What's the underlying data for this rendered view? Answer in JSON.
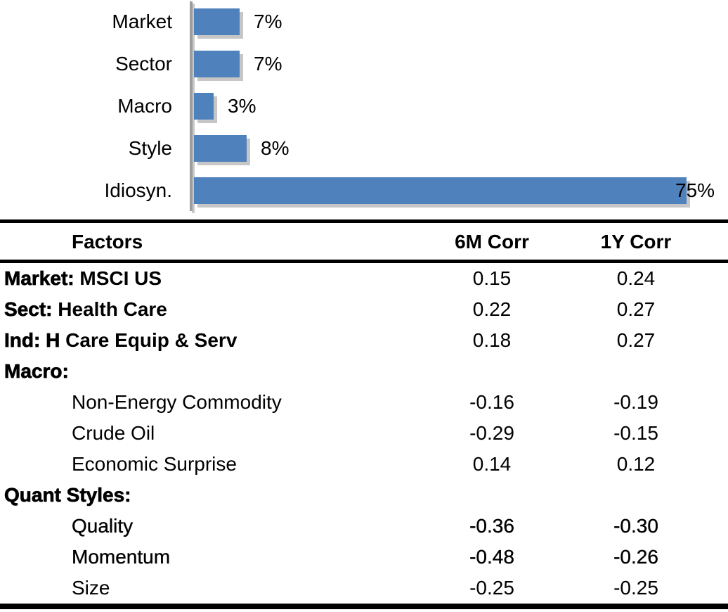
{
  "colors": {
    "bar": "#4f81bd",
    "bar_shadow": "#c6c6c6",
    "axis_line": "#9d9d9d",
    "rule": "#000000",
    "text": "#000000"
  },
  "chart_data": [
    {
      "type": "bar",
      "orientation": "horizontal",
      "title": "",
      "xlabel": "",
      "ylabel": "",
      "categories": [
        "Market",
        "Sector",
        "Macro",
        "Style",
        "Idiosyn."
      ],
      "values": [
        7,
        7,
        3,
        8,
        75
      ],
      "data_labels": [
        "7%",
        "7%",
        "3%",
        "8%",
        "75%"
      ],
      "unit": "%",
      "xlim": [
        0,
        80
      ],
      "value_axis_visible": false,
      "grid": false,
      "legend": "none",
      "bar_color": "#4f81bd"
    },
    {
      "type": "table",
      "columns": [
        "Factors",
        "6M Corr",
        "1Y Corr"
      ],
      "rows": [
        {
          "strong": "Market:",
          "label": "MSCI US",
          "indent": false,
          "semi": false,
          "c6": "0.15",
          "c1": "0.24"
        },
        {
          "strong": "Sect:",
          "label": "Health Care",
          "indent": false,
          "semi": false,
          "c6": "0.22",
          "c1": "0.27"
        },
        {
          "strong": "Ind: H",
          "label": "Care Equip & Serv",
          "indent": false,
          "semi": false,
          "c6": "0.18",
          "c1": "0.27"
        },
        {
          "strong": "Macro:",
          "label": "",
          "indent": false,
          "semi": false,
          "c6": "",
          "c1": ""
        },
        {
          "strong": "",
          "label": "Non-Energy Commodity",
          "indent": true,
          "semi": false,
          "c6": "-0.16",
          "c1": "-0.19"
        },
        {
          "strong": "",
          "label": "Crude Oil",
          "indent": true,
          "semi": false,
          "c6": "-0.29",
          "c1": "-0.15"
        },
        {
          "strong": "",
          "label": "Economic Surprise",
          "indent": true,
          "semi": false,
          "c6": "0.14",
          "c1": "0.12"
        },
        {
          "strong": "Quant Styles:",
          "label": "",
          "indent": false,
          "semi": false,
          "c6": "",
          "c1": ""
        },
        {
          "strong": "",
          "label": "Quality",
          "indent": true,
          "semi": true,
          "c6": "-0.36",
          "c1": "-0.30"
        },
        {
          "strong": "",
          "label": "Momentum",
          "indent": true,
          "semi": true,
          "c6": "-0.48",
          "c1": "-0.26"
        },
        {
          "strong": "",
          "label": "Size",
          "indent": true,
          "semi": false,
          "c6": "-0.25",
          "c1": "-0.25"
        }
      ]
    }
  ]
}
